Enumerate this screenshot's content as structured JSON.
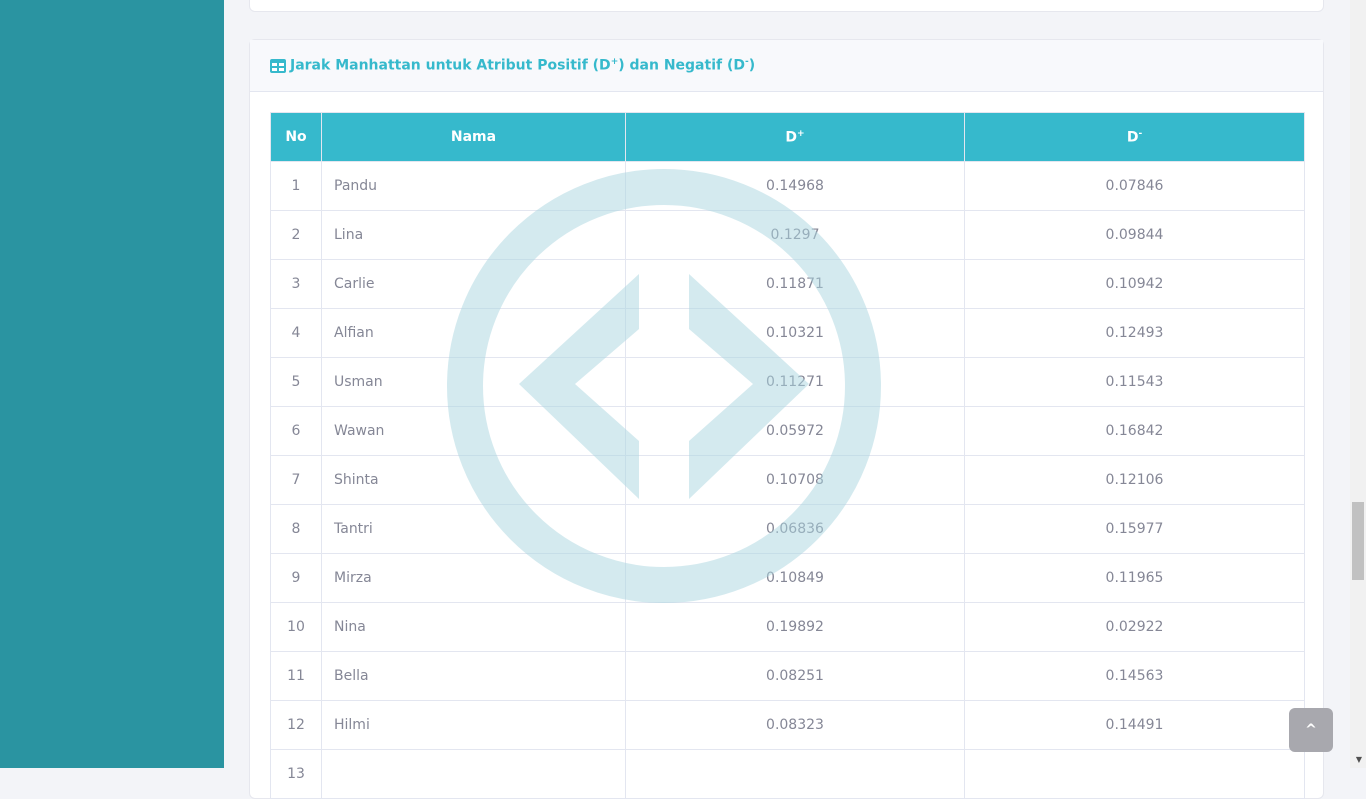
{
  "card": {
    "title": "Jarak Manhattan untuk Atribut Positif (D",
    "title_plus": "+",
    "title_mid": ") dan Negatif (D",
    "title_minus": "-",
    "title_end": ")",
    "icon": "table-icon"
  },
  "table": {
    "headers": {
      "no": "No",
      "nama": "Nama",
      "dplus_base": "D",
      "dplus_sup": "+",
      "dminus_base": "D",
      "dminus_sup": "-"
    },
    "rows": [
      {
        "no": "1",
        "nama": "Pandu",
        "dplus": "0.14968",
        "dminus": "0.07846"
      },
      {
        "no": "2",
        "nama": "Lina",
        "dplus": "0.1297",
        "dminus": "0.09844"
      },
      {
        "no": "3",
        "nama": "Carlie",
        "dplus": "0.11871",
        "dminus": "0.10942"
      },
      {
        "no": "4",
        "nama": "Alfian",
        "dplus": "0.10321",
        "dminus": "0.12493"
      },
      {
        "no": "5",
        "nama": "Usman",
        "dplus": "0.11271",
        "dminus": "0.11543"
      },
      {
        "no": "6",
        "nama": "Wawan",
        "dplus": "0.05972",
        "dminus": "0.16842"
      },
      {
        "no": "7",
        "nama": "Shinta",
        "dplus": "0.10708",
        "dminus": "0.12106"
      },
      {
        "no": "8",
        "nama": "Tantri",
        "dplus": "0.06836",
        "dminus": "0.15977"
      },
      {
        "no": "9",
        "nama": "Mirza",
        "dplus": "0.10849",
        "dminus": "0.11965"
      },
      {
        "no": "10",
        "nama": "Nina",
        "dplus": "0.19892",
        "dminus": "0.02922"
      },
      {
        "no": "11",
        "nama": "Bella",
        "dplus": "0.08251",
        "dminus": "0.14563"
      },
      {
        "no": "12",
        "nama": "Hilmi",
        "dplus": "0.08323",
        "dminus": "0.14491"
      },
      {
        "no": "13",
        "nama": "",
        "dplus": "",
        "dminus": ""
      }
    ]
  },
  "scroll_top": {
    "icon": "chevron-up-icon",
    "label": "^"
  },
  "colors": {
    "sidebar": "#2a94a1",
    "accent": "#36b9cc"
  }
}
